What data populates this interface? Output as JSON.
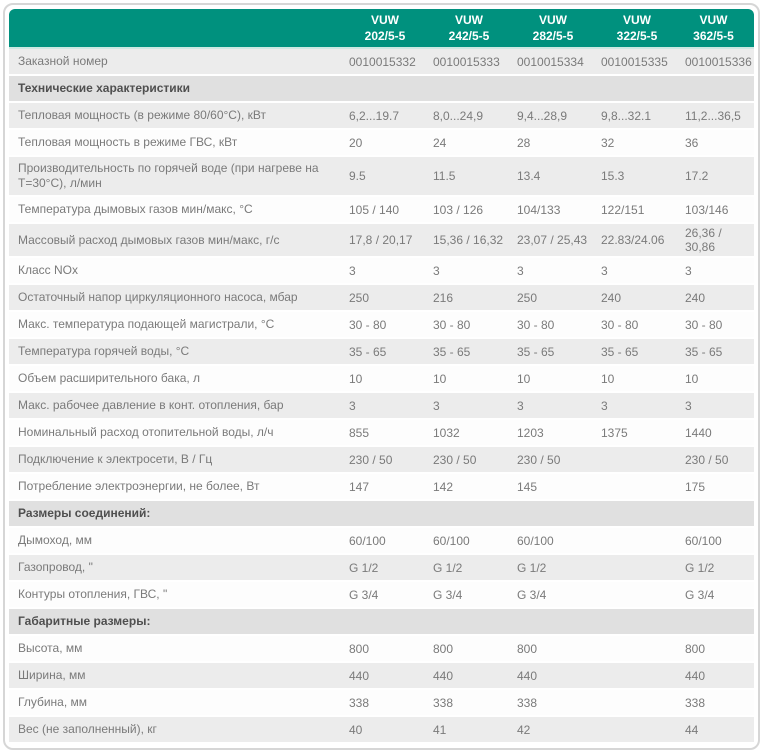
{
  "table": {
    "columns": [
      {
        "model": "VUW",
        "variant": "202/5-5"
      },
      {
        "model": "VUW",
        "variant": "242/5-5"
      },
      {
        "model": "VUW",
        "variant": "282/5-5"
      },
      {
        "model": "VUW",
        "variant": "322/5-5"
      },
      {
        "model": "VUW",
        "variant": "362/5-5"
      }
    ],
    "rows": [
      {
        "shade": "gray",
        "label": "Заказной номер",
        "values": [
          "0010015332",
          "0010015333",
          "0010015334",
          "0010015335",
          "0010015336"
        ]
      },
      {
        "shade": "section",
        "label": "Технические характеристики",
        "values": []
      },
      {
        "shade": "gray",
        "label": "Тепловая мощность (в режиме 80/60°С), кВт",
        "values": [
          "6,2...19.7",
          "8,0...24,9",
          "9,4...28,9",
          "9,8...32.1",
          "11,2...36,5"
        ]
      },
      {
        "shade": "white",
        "label": "Тепловая мощность в режиме ГВС, кВт",
        "values": [
          "20",
          "24",
          "28",
          "32",
          "36"
        ]
      },
      {
        "shade": "gray",
        "label": "Производительность по горячей воде (при нагреве на Т=30°С), л/мин",
        "values": [
          "9.5",
          "11.5",
          "13.4",
          "15.3",
          "17.2"
        ]
      },
      {
        "shade": "white",
        "label": "Температура дымовых газов мин/макс, °С",
        "values": [
          "105 / 140",
          "103 / 126",
          "104/133",
          "122/151",
          "103/146"
        ]
      },
      {
        "shade": "gray",
        "label": "Массовый расход дымовых газов мин/макс, г/с",
        "values": [
          "17,8 / 20,17",
          "15,36 / 16,32",
          "23,07 / 25,43",
          "22.83/24.06",
          "26,36 / 30,86"
        ]
      },
      {
        "shade": "white",
        "label": "Класс NOx",
        "values": [
          "3",
          "3",
          "3",
          "3",
          "3"
        ]
      },
      {
        "shade": "gray",
        "label": "Остаточный напор циркуляционного насоса, мбар",
        "values": [
          "250",
          "216",
          "250",
          "240",
          "240"
        ]
      },
      {
        "shade": "white",
        "label": "Макс. температура подающей магистрали, °С",
        "values": [
          "30 - 80",
          "30 - 80",
          "30 - 80",
          "30 - 80",
          "30 - 80"
        ]
      },
      {
        "shade": "gray",
        "label": "Температура горячей воды, °С",
        "values": [
          "35 - 65",
          "35 - 65",
          "35 - 65",
          "35 - 65",
          "35 - 65"
        ]
      },
      {
        "shade": "white",
        "label": "Объем расширительного бака, л",
        "values": [
          "10",
          "10",
          "10",
          "10",
          "10"
        ]
      },
      {
        "shade": "gray",
        "label": "Макс. рабочее давление в конт. отопления, бар",
        "values": [
          "3",
          "3",
          "3",
          "3",
          "3"
        ]
      },
      {
        "shade": "white",
        "label": "Номинальный расход отопительной воды, л/ч",
        "values": [
          "855",
          "1032",
          "1203",
          "1375",
          "1440"
        ]
      },
      {
        "shade": "gray",
        "label": "Подключение к электросети, В / Гц",
        "values": [
          "230 / 50",
          "230 / 50",
          "230 / 50",
          "",
          "230 / 50"
        ]
      },
      {
        "shade": "white",
        "label": "Потребление электроэнергии, не более, Вт",
        "values": [
          "147",
          "142",
          "145",
          "",
          "175"
        ]
      },
      {
        "shade": "section",
        "label": "Размеры соединений:",
        "values": []
      },
      {
        "shade": "white",
        "label": "Дымоход, мм",
        "values": [
          "60/100",
          "60/100",
          "60/100",
          "",
          "60/100"
        ]
      },
      {
        "shade": "gray",
        "label": "Газопровод, \"",
        "values": [
          "G 1/2",
          "G 1/2",
          "G 1/2",
          "",
          "G 1/2"
        ]
      },
      {
        "shade": "white",
        "label": "Контуры отопления, ГВС, \"",
        "values": [
          "G 3/4",
          "G 3/4",
          "G 3/4",
          "",
          "G 3/4"
        ]
      },
      {
        "shade": "section",
        "label": "Габаритные размеры:",
        "values": []
      },
      {
        "shade": "white",
        "label": "Высота, мм",
        "values": [
          "800",
          "800",
          "800",
          "",
          "800"
        ]
      },
      {
        "shade": "gray",
        "label": "Ширина, мм",
        "values": [
          "440",
          "440",
          "440",
          "",
          "440"
        ]
      },
      {
        "shade": "white",
        "label": "Глубина, мм",
        "values": [
          "338",
          "338",
          "338",
          "",
          "338"
        ]
      },
      {
        "shade": "gray",
        "label": "Вес (не заполненный), кг",
        "values": [
          "40",
          "41",
          "42",
          "",
          "44"
        ]
      }
    ],
    "colors": {
      "header_bg": "#00917e",
      "header_text": "#ffffff",
      "header_underline": "#cde9e3",
      "row_gray": "#ececec",
      "row_white": "#fdfdfd",
      "section_bg": "#e0e0e0",
      "text": "#7a7a7a",
      "section_text": "#4f4f4f",
      "card_border": "#d6d6d6"
    }
  }
}
